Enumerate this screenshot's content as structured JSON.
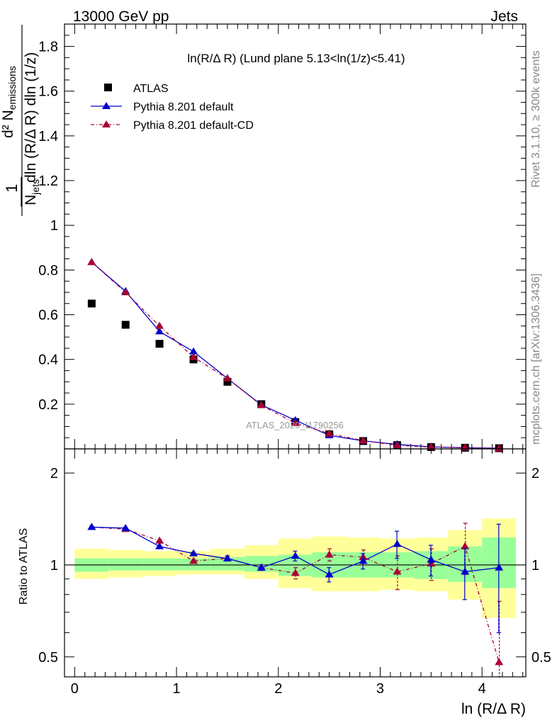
{
  "header": {
    "left": "13000 GeV pp",
    "right": "Jets"
  },
  "side_labels": {
    "rivet": "Rivet 3.1.10, ≥ 300k events",
    "mcplots": "mcplots.cern.ch [arXiv:1306.3436]"
  },
  "watermark": "ATLAS_2020_I1790256",
  "plot_title": "ln(R/Δ R) (Lund plane 5.13<ln(1/z)<5.41)",
  "ylabel_main": {
    "prefix": "1",
    "njets": "N",
    "njets_sub": "jets",
    "numerator": "d² N",
    "numerator_sub": "emissions",
    "denominator": "dln (R/Δ R) dln (1/z)"
  },
  "ylabel_ratio": "Ratio to ATLAS",
  "xlabel": "ln (R/Δ R)",
  "colors": {
    "data": "#000000",
    "pythia_default": "#0000cc",
    "pythia_cd": "#aa0033",
    "band_inner": "#99ff99",
    "band_outer": "#ffff99"
  },
  "chart_data": [
    {
      "type": "scatter",
      "panel": "main",
      "x": [
        0.167,
        0.5,
        0.833,
        1.167,
        1.5,
        1.833,
        2.167,
        2.5,
        2.833,
        3.167,
        3.5,
        3.833,
        4.167
      ],
      "xlim": [
        -0.1,
        4.43
      ],
      "ylim": [
        0,
        1.9
      ],
      "yticks": [
        "0.2",
        "0.4",
        "0.6",
        "0.8",
        "1",
        "1.2",
        "1.4",
        "1.6",
        "1.8"
      ],
      "legend_placement": "top-left",
      "series": [
        {
          "name": "ATLAS",
          "style": "square-marker",
          "values": [
            0.65,
            0.555,
            0.47,
            0.4,
            0.3,
            0.2,
            0.12,
            0.065,
            0.035,
            0.017,
            0.008,
            0.005,
            0.003
          ]
        },
        {
          "name": "Pythia 8.201 default",
          "style": "solid-line-triangle",
          "values": [
            0.835,
            0.705,
            0.525,
            0.435,
            0.315,
            0.197,
            0.128,
            0.06,
            0.036,
            0.02,
            0.009,
            0.005,
            0.003
          ]
        },
        {
          "name": "Pythia 8.201 default-CD",
          "style": "dashdot-line-triangle",
          "values": [
            0.835,
            0.7,
            0.55,
            0.41,
            0.315,
            0.195,
            0.115,
            0.068,
            0.037,
            0.016,
            0.008,
            0.006,
            0.0015
          ]
        }
      ]
    },
    {
      "type": "line",
      "panel": "ratio",
      "ylabel": "Ratio to ATLAS",
      "xlabel": "ln (R/Δ R)",
      "xlim": [
        -0.1,
        4.43
      ],
      "ylim": [
        0.43,
        2.4
      ],
      "log_y": true,
      "yticks": [
        "0.5",
        "1",
        "2"
      ],
      "xticks": [
        "0",
        "1",
        "2",
        "3",
        "4"
      ],
      "x": [
        0.167,
        0.5,
        0.833,
        1.167,
        1.5,
        1.833,
        2.167,
        2.5,
        2.833,
        3.167,
        3.5,
        3.833,
        4.167
      ],
      "bin_edges": [
        0,
        0.333,
        0.667,
        1.0,
        1.333,
        1.667,
        2.0,
        2.333,
        2.667,
        3.0,
        3.333,
        3.667,
        4.0,
        4.333
      ],
      "band_inner": {
        "lo": [
          0.95,
          0.96,
          0.96,
          0.96,
          0.96,
          0.95,
          0.92,
          0.91,
          0.91,
          0.91,
          0.9,
          0.88,
          0.84
        ],
        "hi": [
          1.05,
          1.05,
          1.05,
          1.05,
          1.06,
          1.07,
          1.08,
          1.1,
          1.1,
          1.1,
          1.11,
          1.15,
          1.23
        ]
      },
      "band_outer": {
        "lo": [
          0.9,
          0.91,
          0.92,
          0.93,
          0.93,
          0.9,
          0.84,
          0.82,
          0.82,
          0.83,
          0.82,
          0.77,
          0.67
        ],
        "hi": [
          1.13,
          1.12,
          1.11,
          1.11,
          1.13,
          1.16,
          1.22,
          1.24,
          1.23,
          1.22,
          1.23,
          1.3,
          1.42
        ]
      },
      "reference_line": 1,
      "series": [
        {
          "name": "Pythia 8.201 default",
          "values": [
            1.33,
            1.32,
            1.15,
            1.09,
            1.05,
            0.98,
            1.07,
            0.93,
            1.03,
            1.17,
            1.04,
            0.95,
            0.98
          ],
          "err": [
            0.01,
            0.01,
            0.01,
            0.01,
            0.02,
            0.02,
            0.04,
            0.05,
            0.06,
            0.12,
            0.12,
            0.18,
            0.38
          ]
        },
        {
          "name": "Pythia 8.201 default-CD",
          "values": [
            1.33,
            1.31,
            1.2,
            1.03,
            1.05,
            0.98,
            0.94,
            1.08,
            1.06,
            0.95,
            1.01,
            1.15,
            0.48
          ],
          "err": [
            0.01,
            0.01,
            0.01,
            0.01,
            0.02,
            0.02,
            0.04,
            0.05,
            0.06,
            0.12,
            0.12,
            0.22,
            0.28
          ]
        }
      ]
    }
  ]
}
